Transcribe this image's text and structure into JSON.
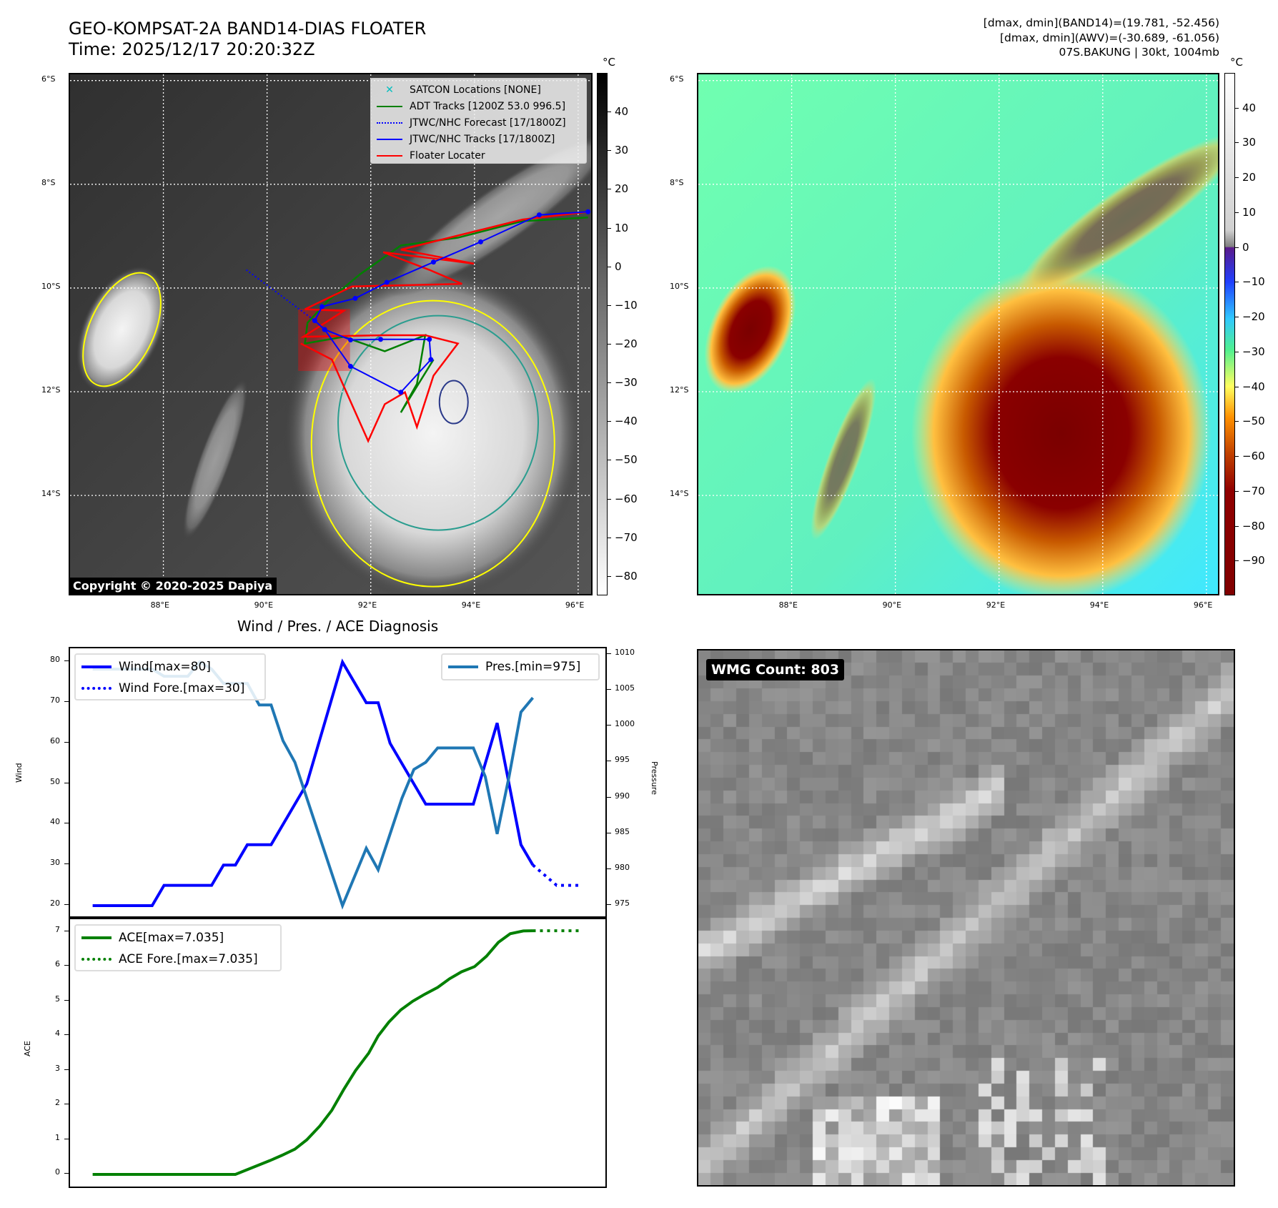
{
  "header": {
    "title_line1": "GEO-KOMPSAT-2A BAND14-DIAS FLOATER",
    "title_line2": "Time: 2025/12/17 20:20:32Z",
    "stats_line1": "[dmax, dmin](BAND14)=(19.781, -52.456)",
    "stats_line2": "[dmax, dmin](AWV)=(-30.689, -61.056)",
    "stats_line3": "07S.BAKUNG | 30kt, 1004mb"
  },
  "map": {
    "lat_labels": [
      "6°S",
      "8°S",
      "10°S",
      "12°S",
      "14°S"
    ],
    "lat_values": [
      6,
      8,
      10,
      12,
      14
    ],
    "lon_labels": [
      "88°E",
      "90°E",
      "92°E",
      "94°E",
      "96°E"
    ],
    "lon_values": [
      88,
      90,
      92,
      94,
      96
    ],
    "lon_range": [
      86.2,
      96.25
    ],
    "lat_range": [
      5.88,
      15.9
    ],
    "copyright": "Copyright © 2020-2025 Dapiya",
    "legend": [
      "SATCON Locations [NONE]",
      "ADT Tracks [1200Z 53.0 996.5]",
      "JTWC/NHC Forecast [17/1800Z]",
      "JTWC/NHC Tracks [17/1800Z]",
      "Floater Locater"
    ],
    "colors": {
      "adt": "#008000",
      "jtwc": "#0000ff",
      "floater": "#ff0000",
      "satcon": "#00bfbf"
    },
    "jtwc_track": [
      [
        96.19,
        8.53
      ],
      [
        95.25,
        8.59
      ],
      [
        94.12,
        9.11
      ],
      [
        93.21,
        9.5
      ],
      [
        92.31,
        9.89
      ],
      [
        91.7,
        10.2
      ],
      [
        91.06,
        10.36
      ],
      [
        90.92,
        10.63
      ],
      [
        91.11,
        10.8
      ],
      [
        91.61,
        11.0
      ],
      [
        92.19,
        10.99
      ],
      [
        93.13,
        10.99
      ],
      [
        93.16,
        11.38
      ],
      [
        92.58,
        12.01
      ],
      [
        91.61,
        11.51
      ],
      [
        91.11,
        10.8
      ]
    ],
    "jtwc_forecast": [
      [
        89.6,
        9.65
      ],
      [
        90.92,
        10.63
      ]
    ],
    "floater": [
      [
        96.19,
        8.53
      ],
      [
        94.93,
        8.68
      ],
      [
        92.58,
        9.26
      ],
      [
        93.99,
        9.53
      ],
      [
        92.24,
        9.31
      ],
      [
        93.13,
        9.65
      ],
      [
        93.76,
        9.92
      ],
      [
        91.64,
        9.97
      ],
      [
        90.73,
        10.41
      ],
      [
        91.48,
        10.44
      ],
      [
        90.7,
        10.94
      ],
      [
        92.27,
        10.91
      ],
      [
        93.05,
        10.91
      ],
      [
        93.68,
        11.07
      ],
      [
        93.21,
        11.69
      ],
      [
        92.89,
        12.68
      ],
      [
        92.66,
        12.01
      ],
      [
        92.27,
        12.24
      ],
      [
        91.95,
        12.95
      ],
      [
        91.25,
        11.38
      ],
      [
        90.65,
        11.07
      ]
    ],
    "adt": [
      [
        96.19,
        8.64
      ],
      [
        94.93,
        8.71
      ],
      [
        93.68,
        9.03
      ],
      [
        92.58,
        9.18
      ],
      [
        91.8,
        9.73
      ],
      [
        91.17,
        10.25
      ],
      [
        90.78,
        10.67
      ],
      [
        90.73,
        11.07
      ],
      [
        91.48,
        10.94
      ],
      [
        92.27,
        11.22
      ],
      [
        93.05,
        10.91
      ],
      [
        92.89,
        11.85
      ],
      [
        92.58,
        12.4
      ],
      [
        93.21,
        11.38
      ]
    ]
  },
  "colorbar1": {
    "unit": "°C",
    "ticks": [
      "40",
      "30",
      "20",
      "10",
      "0",
      "−10",
      "−20",
      "−30",
      "−40",
      "−50",
      "−60",
      "−70",
      "−80"
    ],
    "values": [
      40,
      30,
      20,
      10,
      0,
      -10,
      -20,
      -30,
      -40,
      -50,
      -60,
      -70,
      -80
    ],
    "range": [
      50,
      -85
    ]
  },
  "colorbar2": {
    "unit": "°C",
    "ticks": [
      "40",
      "30",
      "20",
      "10",
      "0",
      "−10",
      "−20",
      "−30",
      "−40",
      "−50",
      "−60",
      "−70",
      "−80",
      "−90"
    ],
    "values": [
      40,
      30,
      20,
      10,
      0,
      -10,
      -20,
      -30,
      -40,
      -50,
      -60,
      -70,
      -80,
      -90
    ],
    "range": [
      50,
      -100
    ]
  },
  "diagnosis": {
    "title": "Wind / Pres. / ACE Diagnosis",
    "wind_label": "Wind",
    "pressure_label": "Pressure",
    "ace_label": "ACE",
    "legend_wind": "Wind[max=80]",
    "legend_wind_fore": "Wind Fore.[max=30]",
    "legend_pres": "Pres.[min=975]",
    "legend_ace": "ACE[max=7.035]",
    "legend_ace_fore": "ACE Fore.[max=7.035]"
  },
  "chart_data": [
    {
      "type": "line",
      "title": "Wind / Pres. / ACE Diagnosis",
      "ylabel": "Wind",
      "y2label": "Pressure",
      "ylim": [
        17,
        83.4
      ],
      "y2lim": [
        973.3,
        1010.9
      ],
      "xlim": [
        -1.9,
        43.1
      ],
      "yticks": [
        20,
        30,
        40,
        50,
        60,
        70,
        80
      ],
      "y2ticks": [
        975,
        980,
        985,
        990,
        995,
        1000,
        1005,
        1010
      ],
      "series": [
        {
          "name": "Wind[max=80]",
          "color": "#0000ff",
          "x_start": 0,
          "values": [
            20,
            20,
            20,
            20,
            20,
            20,
            25,
            25,
            25,
            25,
            25,
            30,
            30,
            35,
            35,
            35,
            40,
            45,
            50,
            60,
            70,
            80,
            75,
            70,
            70,
            60,
            55,
            50,
            45,
            45,
            45,
            45,
            45,
            55,
            65,
            50,
            35,
            30
          ]
        },
        {
          "name": "Wind Fore.[max=30]",
          "color": "#0000ff",
          "style": "dotted",
          "x_start": 37,
          "values": [
            30,
            27.5,
            25,
            25,
            25
          ]
        },
        {
          "name": "Pres.[min=975]",
          "color": "#1f77b4",
          "axis": "right",
          "x_start": 0,
          "values": [
            1008,
            1008,
            1008,
            1008,
            1008,
            1008,
            1007,
            1007,
            1007,
            1009,
            1008,
            1006,
            1006,
            1006,
            1003,
            1003,
            998,
            995,
            990,
            985,
            980,
            975,
            979,
            983,
            980,
            985,
            990,
            994,
            995,
            997,
            997,
            997,
            997,
            993,
            985,
            993,
            1002,
            1004
          ]
        }
      ]
    },
    {
      "type": "line",
      "ylabel": "ACE",
      "ylim": [
        -0.35,
        7.41
      ],
      "xlim": [
        -1.9,
        43.1
      ],
      "yticks": [
        0,
        1,
        2,
        3,
        4,
        5,
        6,
        7
      ],
      "series": [
        {
          "name": "ACE[max=7.035]",
          "color": "#008000",
          "points": [
            [
              0,
              0
            ],
            [
              12,
              0
            ],
            [
              14.9,
              0.4
            ],
            [
              15.9,
              0.55
            ],
            [
              17,
              0.73
            ],
            [
              18,
              1.0
            ],
            [
              19.1,
              1.4
            ],
            [
              20.1,
              1.85
            ],
            [
              21.1,
              2.45
            ],
            [
              22.1,
              3.0
            ],
            [
              23.2,
              3.5
            ],
            [
              24,
              4.0
            ],
            [
              24.9,
              4.4
            ],
            [
              25.9,
              4.75
            ],
            [
              26.9,
              5.0
            ],
            [
              27.9,
              5.2
            ],
            [
              29,
              5.4
            ],
            [
              30,
              5.65
            ],
            [
              31,
              5.85
            ],
            [
              32.1,
              6.0
            ],
            [
              33.1,
              6.3
            ],
            [
              34.1,
              6.7
            ],
            [
              35.1,
              6.95
            ],
            [
              36.2,
              7.03
            ],
            [
              37,
              7.035
            ]
          ]
        },
        {
          "name": "ACE Fore.[max=7.035]",
          "color": "#008000",
          "style": "dotted",
          "points": [
            [
              37,
              7.035
            ],
            [
              41,
              7.035
            ]
          ]
        }
      ]
    }
  ],
  "wmg": {
    "label": "WMG Count: 803"
  }
}
